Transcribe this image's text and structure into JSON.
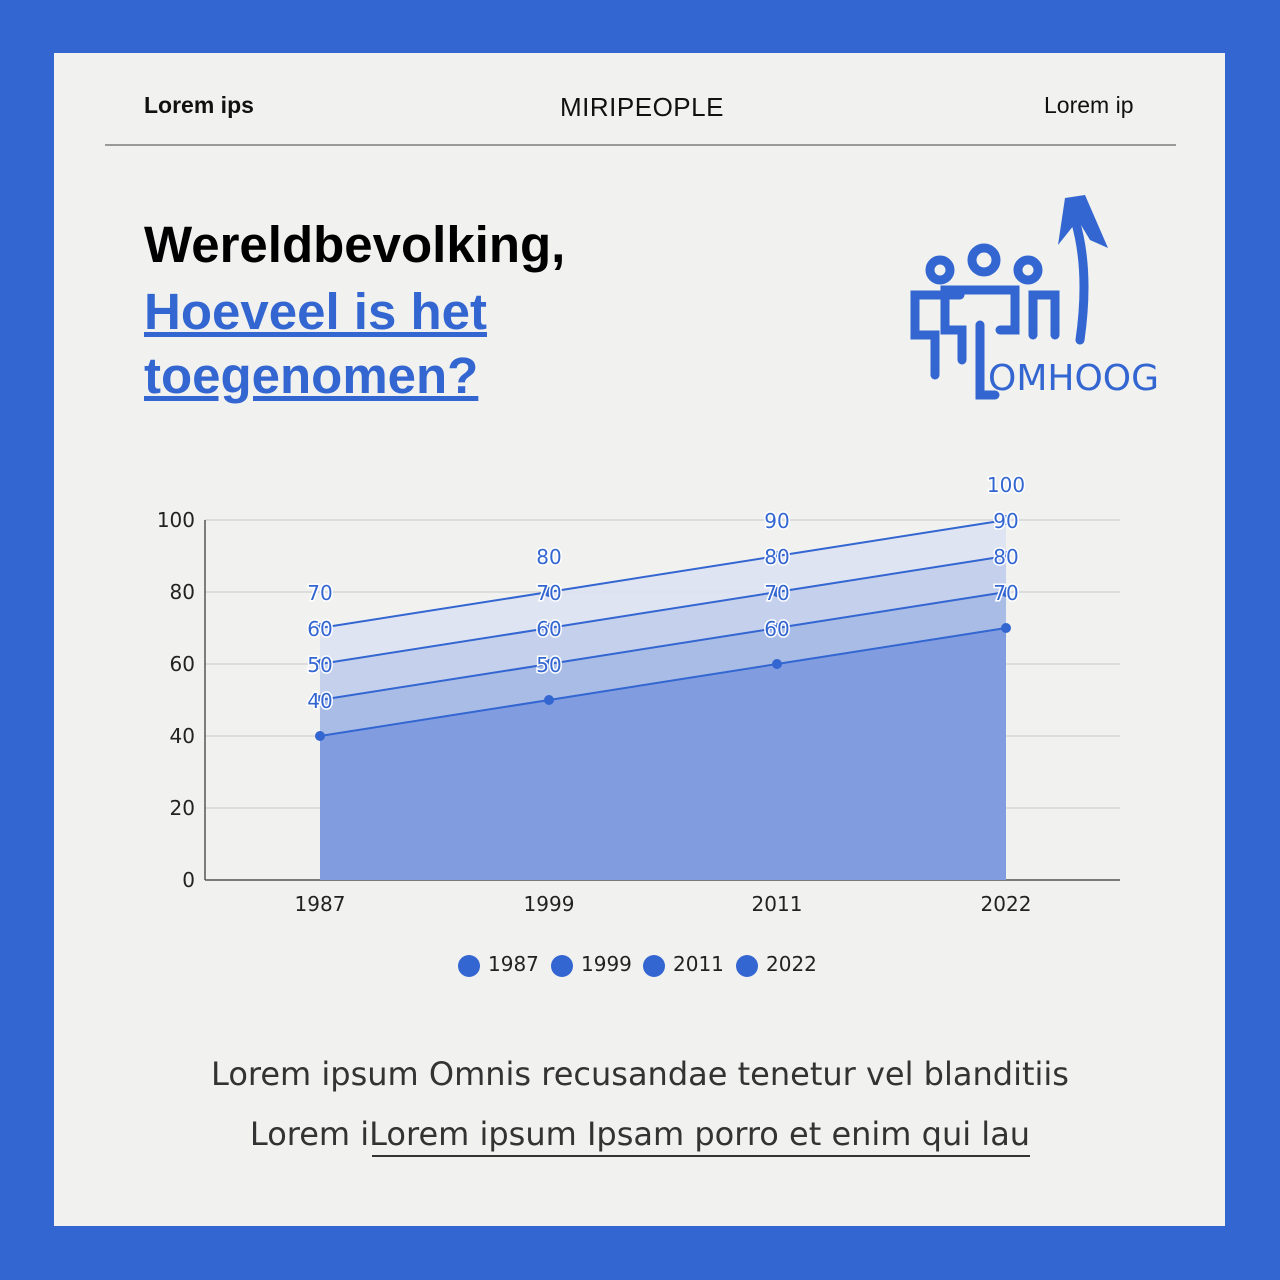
{
  "header": {
    "left": "Lorem ips",
    "center": "MIRIPEOPLE",
    "right": "Lorem ip"
  },
  "title": {
    "line1": "Wereldbevolking,",
    "line2": "Hoeveel is het toegenomen?"
  },
  "logo": {
    "text": "OMHOOG",
    "icon": "people-arrow-up-icon"
  },
  "colors": {
    "background": "#3366d1",
    "accent": "#3366d1",
    "card": "#f1f1ef"
  },
  "chart_data": {
    "type": "area",
    "categories": [
      "1987",
      "1999",
      "2011",
      "2022"
    ],
    "ylim": [
      0,
      100
    ],
    "yticks": [
      0,
      20,
      40,
      60,
      80,
      100
    ],
    "grid": true,
    "legend": "bottom",
    "series": [
      {
        "name": "1987",
        "values": [
          40,
          50,
          60,
          70
        ]
      },
      {
        "name": "1999",
        "values": [
          50,
          60,
          70,
          80
        ]
      },
      {
        "name": "2011",
        "values": [
          60,
          70,
          80,
          90
        ]
      },
      {
        "name": "2022",
        "values": [
          70,
          80,
          90,
          100
        ]
      }
    ]
  },
  "footer": {
    "line1": "Lorem ipsum Omnis recusandae tenetur vel blanditiis",
    "line2": "Lorem iLorem ipsum Ipsam porro et enim qui lau"
  }
}
